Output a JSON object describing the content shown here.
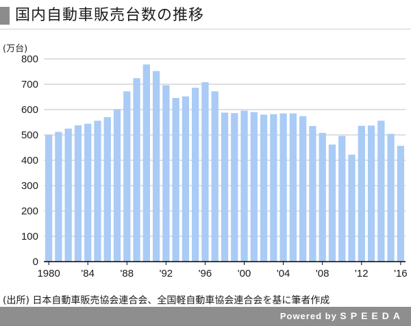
{
  "header": {
    "title": "国内自動車販売台数の推移"
  },
  "unit_label": "(万台)",
  "source": "(出所) 日本自動車販売協会連合会、全国軽自動車協会連合会を基に筆者作成",
  "footer": {
    "powered_by": "Powered by",
    "brand": "SPEEDA"
  },
  "colors": {
    "bar": "#a9cbf5",
    "grid": "#bfbfbf",
    "axis": "#000000",
    "title_accent": "#8c8c8c",
    "footer_bg": "#8e8e8e"
  },
  "chart_data": {
    "type": "bar",
    "title": "国内自動車販売台数の推移",
    "ylabel": "(万台)",
    "ylim": [
      0,
      800
    ],
    "yticks": [
      0,
      100,
      200,
      300,
      400,
      500,
      600,
      700,
      800
    ],
    "grid": true,
    "categories": [
      "1980",
      "1981",
      "1982",
      "1983",
      "1984",
      "1985",
      "1986",
      "1987",
      "1988",
      "1989",
      "1990",
      "1991",
      "1992",
      "1993",
      "1994",
      "1995",
      "1996",
      "1997",
      "1998",
      "1999",
      "2000",
      "2001",
      "2002",
      "2003",
      "2004",
      "2005",
      "2006",
      "2007",
      "2008",
      "2009",
      "2010",
      "2011",
      "2012",
      "2013",
      "2014",
      "2015",
      "2016"
    ],
    "tick_labels": [
      {
        "index": 0,
        "label": "1980"
      },
      {
        "index": 4,
        "label": "'84"
      },
      {
        "index": 8,
        "label": "'88"
      },
      {
        "index": 12,
        "label": "'92"
      },
      {
        "index": 16,
        "label": "'96"
      },
      {
        "index": 20,
        "label": "'00"
      },
      {
        "index": 24,
        "label": "'04"
      },
      {
        "index": 28,
        "label": "'08"
      },
      {
        "index": 32,
        "label": "'12"
      },
      {
        "index": 36,
        "label": "'16"
      }
    ],
    "values": [
      500,
      512,
      525,
      538,
      544,
      556,
      570,
      602,
      672,
      724,
      778,
      752,
      696,
      646,
      652,
      686,
      708,
      672,
      588,
      586,
      596,
      590,
      580,
      582,
      585,
      585,
      574,
      535,
      508,
      462,
      496,
      422,
      536,
      537,
      556,
      504,
      457
    ]
  }
}
